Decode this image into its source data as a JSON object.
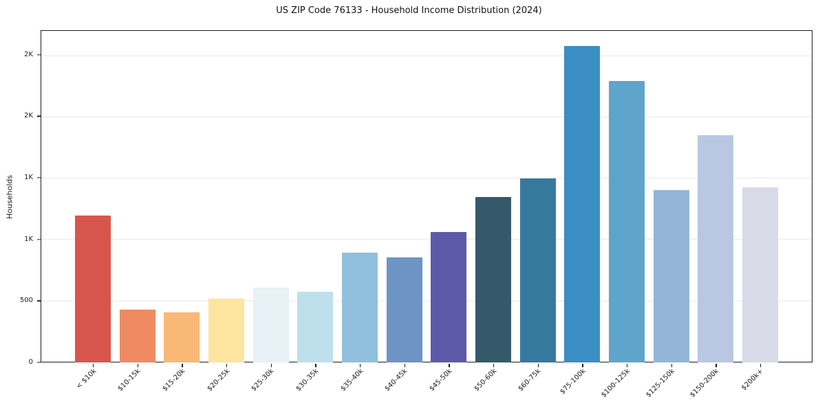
{
  "chart_data": {
    "type": "bar",
    "title": "US ZIP Code 76133 - Household Income Distribution (2024)",
    "xlabel": "",
    "ylabel": "Households",
    "ylim": [
      0,
      2700
    ],
    "grid": "horizontal",
    "legend": "none",
    "categories": [
      "< $10k",
      "$10-15k",
      "$15-20k",
      "$20-25k",
      "$25-30k",
      "$30-35k",
      "$35-40k",
      "$40-45k",
      "$45-50k",
      "$50-60k",
      "$60-75k",
      "$75-100k",
      "$100-125k",
      "$125-150k",
      "$150-200k",
      "$200k+"
    ],
    "values": [
      1195,
      430,
      405,
      520,
      610,
      577,
      890,
      855,
      1060,
      1345,
      1495,
      2570,
      2285,
      1400,
      1845,
      1420
    ],
    "bar_colors": [
      "#d6564e",
      "#f08a63",
      "#fab877",
      "#fde49f",
      "#e7f1f6",
      "#bedfec",
      "#90c0dd",
      "#6d94c5",
      "#5c59a9",
      "#35596b",
      "#36799f",
      "#3a8ec3",
      "#5fa5cb",
      "#92b5d8",
      "#b9c7e2",
      "#d8dae8"
    ],
    "yticks": [
      {
        "value": 0,
        "label": "0"
      },
      {
        "value": 500,
        "label": "500"
      },
      {
        "value": 1000,
        "label": "1K"
      },
      {
        "value": 1500,
        "label": "1K"
      },
      {
        "value": 2000,
        "label": "2K"
      },
      {
        "value": 2500,
        "label": "2K"
      }
    ]
  },
  "colors": {
    "background": "#ffffff",
    "spine": "#1b1b1b",
    "grid": "#e8e8ec",
    "text": "#1b1b1b"
  }
}
